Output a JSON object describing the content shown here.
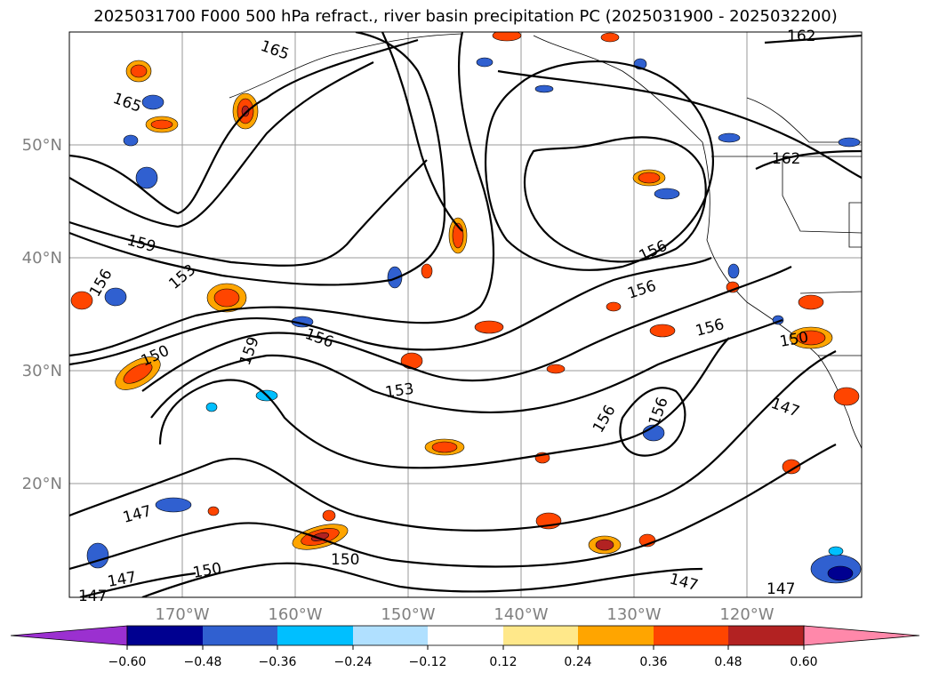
{
  "title": "2025031700 F000 500 hPa refract., river basin precipitation PC (2025031900 - 2025032200)",
  "map": {
    "lat_labels": [
      "50°N",
      "40°N",
      "30°N",
      "20°N"
    ],
    "lon_labels": [
      "170°W",
      "160°W",
      "150°W",
      "140°W",
      "130°W",
      "120°W"
    ],
    "axis_label_color": "#808080",
    "contour_labels": [
      {
        "text": "165"
      },
      {
        "text": "165"
      },
      {
        "text": "162"
      },
      {
        "text": "162"
      },
      {
        "text": "159"
      },
      {
        "text": "153"
      },
      {
        "text": "156"
      },
      {
        "text": "150"
      },
      {
        "text": "159"
      },
      {
        "text": "156"
      },
      {
        "text": "153"
      },
      {
        "text": "156"
      },
      {
        "text": "156"
      },
      {
        "text": "156"
      },
      {
        "text": "150"
      },
      {
        "text": "147"
      },
      {
        "text": "156"
      },
      {
        "text": "147"
      },
      {
        "text": "147"
      },
      {
        "text": "150"
      },
      {
        "text": "147"
      },
      {
        "text": "150"
      },
      {
        "text": "147"
      },
      {
        "text": "147"
      },
      {
        "text": "156"
      }
    ]
  },
  "colorbar": {
    "tick_labels": [
      "−0.60",
      "−0.48",
      "−0.36",
      "−0.24",
      "−0.12",
      "0.12",
      "0.24",
      "0.36",
      "0.48",
      "0.60"
    ],
    "colors": [
      "#9b30d0",
      "#000090",
      "#3060d0",
      "#00bfff",
      "#b0e0ff",
      "#ffffff",
      "#ffe88a",
      "#ffa500",
      "#ff4500",
      "#b22222",
      "#ff88aa"
    ]
  }
}
